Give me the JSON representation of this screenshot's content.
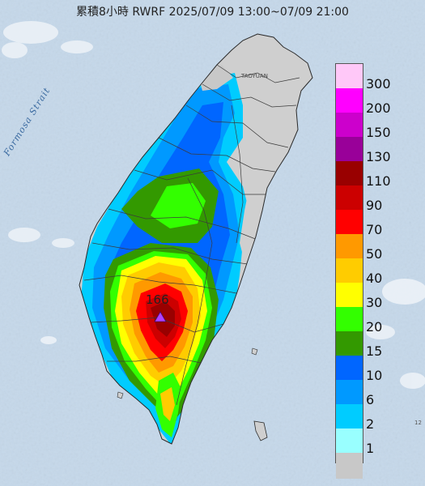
{
  "header": {
    "title": "累積8小時 RWRF 2025/07/09 13:00~07/09 21:00"
  },
  "map": {
    "strait_label": "Formosa Strait",
    "city_label": "TAOYUAN",
    "edge_label": "12",
    "peak": {
      "value": "166",
      "marker_color": "#b040ff"
    },
    "land_color": "#cfcfcf",
    "sea_color": "#c5d8ea"
  },
  "legend": {
    "items": [
      {
        "label": "300",
        "color": "#ffc8f8"
      },
      {
        "label": "200",
        "color": "#ff00ff"
      },
      {
        "label": "150",
        "color": "#cc00cc"
      },
      {
        "label": "130",
        "color": "#990099"
      },
      {
        "label": "110",
        "color": "#990000"
      },
      {
        "label": "90",
        "color": "#cc0000"
      },
      {
        "label": "70",
        "color": "#ff0000"
      },
      {
        "label": "50",
        "color": "#ff9900"
      },
      {
        "label": "40",
        "color": "#ffcc00"
      },
      {
        "label": "30",
        "color": "#ffff00"
      },
      {
        "label": "20",
        "color": "#33ff00"
      },
      {
        "label": "15",
        "color": "#339900"
      },
      {
        "label": "10",
        "color": "#0066ff"
      },
      {
        "label": "6",
        "color": "#0099ff"
      },
      {
        "label": "2",
        "color": "#00ccff"
      },
      {
        "label": "1",
        "color": "#99ffff"
      },
      {
        "label": "",
        "color": "#c8c8c8"
      }
    ]
  }
}
